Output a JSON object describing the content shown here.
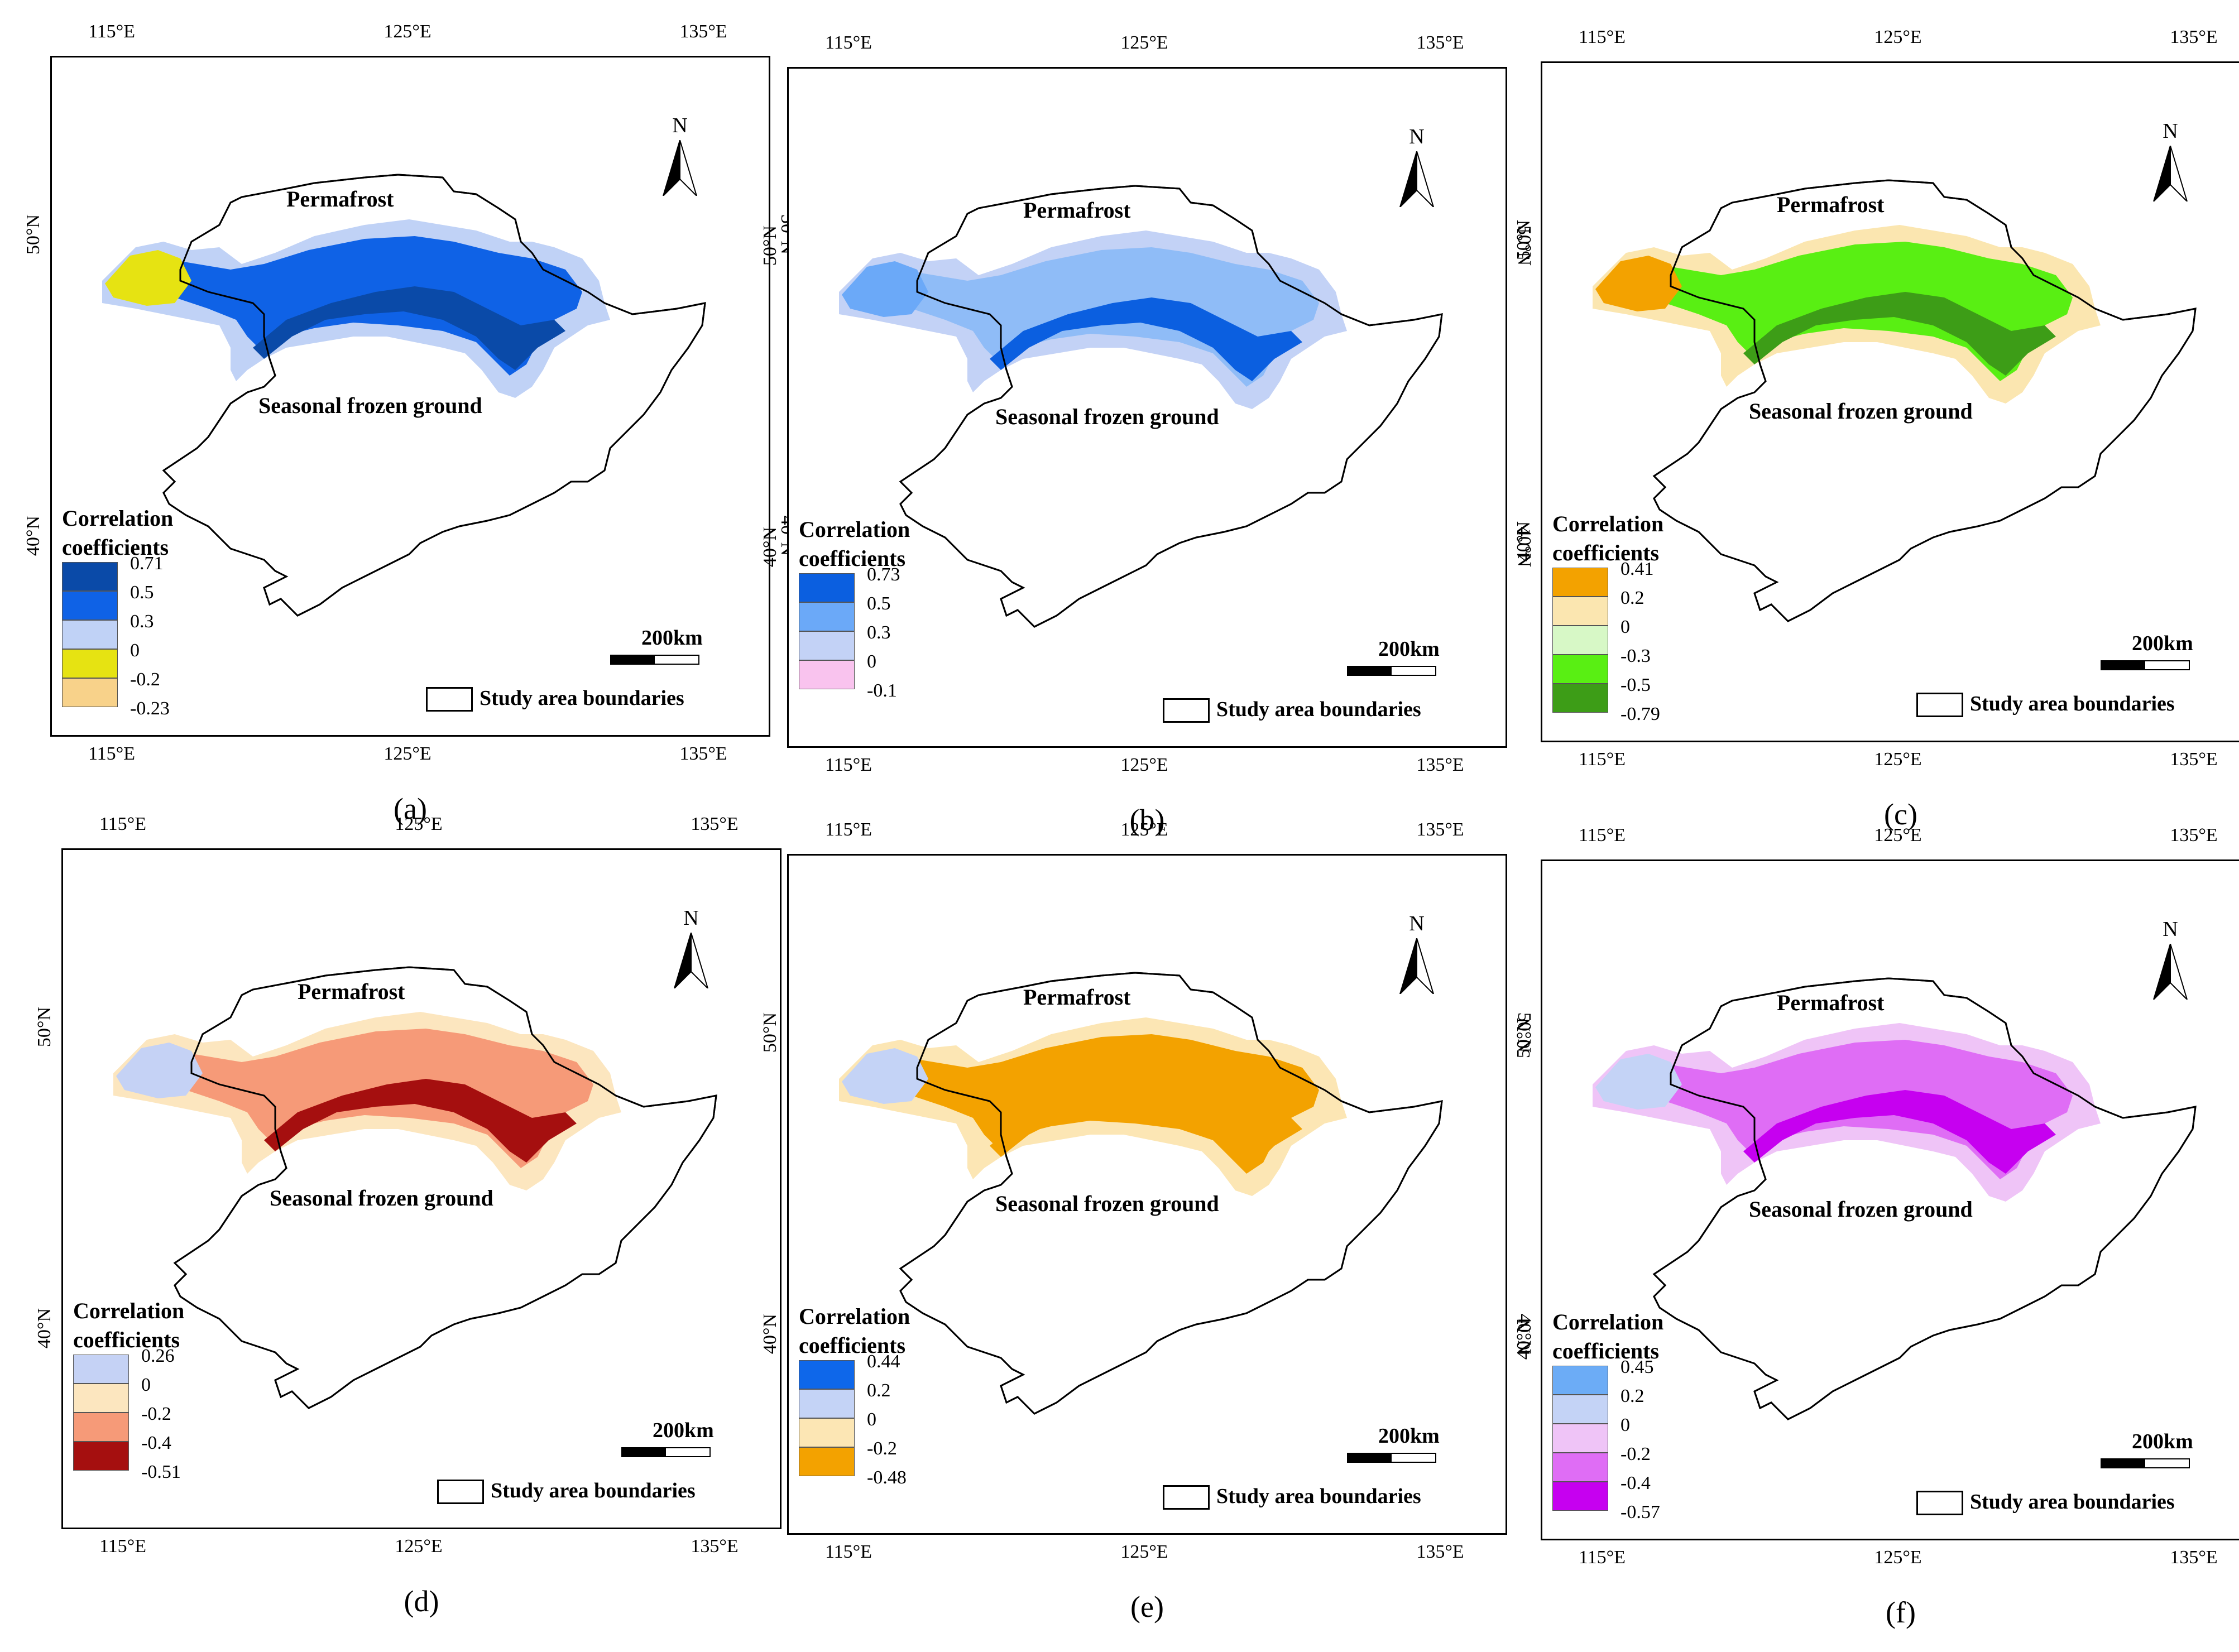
{
  "common": {
    "top_lon_ticks": [
      "115°E",
      "125°E",
      "135°E"
    ],
    "bottom_lon_ticks": [
      "115°E",
      "125°E",
      "135°E"
    ],
    "lat_ticks": [
      "50°N",
      "40°N"
    ],
    "permafrost_label": "Permafrost",
    "seasonal_label": "Seasonal frozen ground",
    "legend_title": [
      "Correlation",
      "coefficients"
    ],
    "scale_label": "200km",
    "study_area_label": "Study area boundaries",
    "north_label": "N",
    "north_icon": "north-arrow-icon"
  },
  "panels": [
    {
      "caption": "(a)",
      "legend": [
        {
          "color": "#0a4aa8",
          "value": "0.71"
        },
        {
          "color": "#0f62e6",
          "value": "0.5"
        },
        {
          "color": "#c0d2f6",
          "value": "0.3"
        },
        {
          "color": "#e6e312",
          "value": "0"
        },
        {
          "color": "#f8d28a",
          "value": "-0.2"
        },
        {
          "color": null,
          "value": "-0.23"
        }
      ],
      "colors": {
        "main": "#0f62e6",
        "secondary": "#c0d2f6",
        "accent": "#0a4aa8",
        "extra": "#e6e312"
      }
    },
    {
      "caption": "(b)",
      "legend": [
        {
          "color": "#0b5fe0",
          "value": "0.73"
        },
        {
          "color": "#6ba9f8",
          "value": "0.5"
        },
        {
          "color": "#c3d2f6",
          "value": "0.3"
        },
        {
          "color": "#f9c3ee",
          "value": "0"
        },
        {
          "color": null,
          "value": "-0.1"
        }
      ],
      "colors": {
        "main": "#8fbcf7",
        "secondary": "#c3d2f6",
        "accent": "#0b5fe0",
        "extra": "#6ba9f8"
      }
    },
    {
      "caption": "(c)",
      "legend": [
        {
          "color": "#f3a200",
          "value": "0.41"
        },
        {
          "color": "#fbe6b0",
          "value": "0.2"
        },
        {
          "color": "#d7f8c6",
          "value": "0"
        },
        {
          "color": "#59ef13",
          "value": "-0.3"
        },
        {
          "color": "#3d9d17",
          "value": "-0.5"
        },
        {
          "color": null,
          "value": "-0.79"
        }
      ],
      "colors": {
        "main": "#59ef13",
        "secondary": "#fbe6b0",
        "accent": "#3d9d17",
        "extra": "#f3a200"
      }
    },
    {
      "caption": "(d)",
      "legend": [
        {
          "color": "#c5d2f5",
          "value": "0.26"
        },
        {
          "color": "#fce6bf",
          "value": "0"
        },
        {
          "color": "#f69a78",
          "value": "-0.2"
        },
        {
          "color": "#a50f0f",
          "value": "-0.4"
        },
        {
          "color": null,
          "value": "-0.51"
        }
      ],
      "colors": {
        "main": "#f69a78",
        "secondary": "#fce6bf",
        "accent": "#a50f0f",
        "extra": "#c5d2f5"
      }
    },
    {
      "caption": "(e)",
      "legend": [
        {
          "color": "#0e67ea",
          "value": "0.44"
        },
        {
          "color": "#c4d3f6",
          "value": "0.2"
        },
        {
          "color": "#fce6b4",
          "value": "0"
        },
        {
          "color": "#f3a200",
          "value": "-0.2"
        },
        {
          "color": null,
          "value": "-0.48"
        }
      ],
      "colors": {
        "main": "#f3a200",
        "secondary": "#fce6b4",
        "accent": "#f3a200",
        "extra": "#c4d3f6"
      }
    },
    {
      "caption": "(f)",
      "legend": [
        {
          "color": "#6cacf6",
          "value": "0.45"
        },
        {
          "color": "#c4d3f6",
          "value": "0.2"
        },
        {
          "color": "#efc4f7",
          "value": "0"
        },
        {
          "color": "#df6df5",
          "value": "-0.2"
        },
        {
          "color": "#c600f0",
          "value": "-0.4"
        },
        {
          "color": null,
          "value": "-0.57"
        }
      ],
      "colors": {
        "main": "#df6df5",
        "secondary": "#efc4f7",
        "accent": "#c600f0",
        "extra": "#c4d3f6"
      }
    }
  ]
}
